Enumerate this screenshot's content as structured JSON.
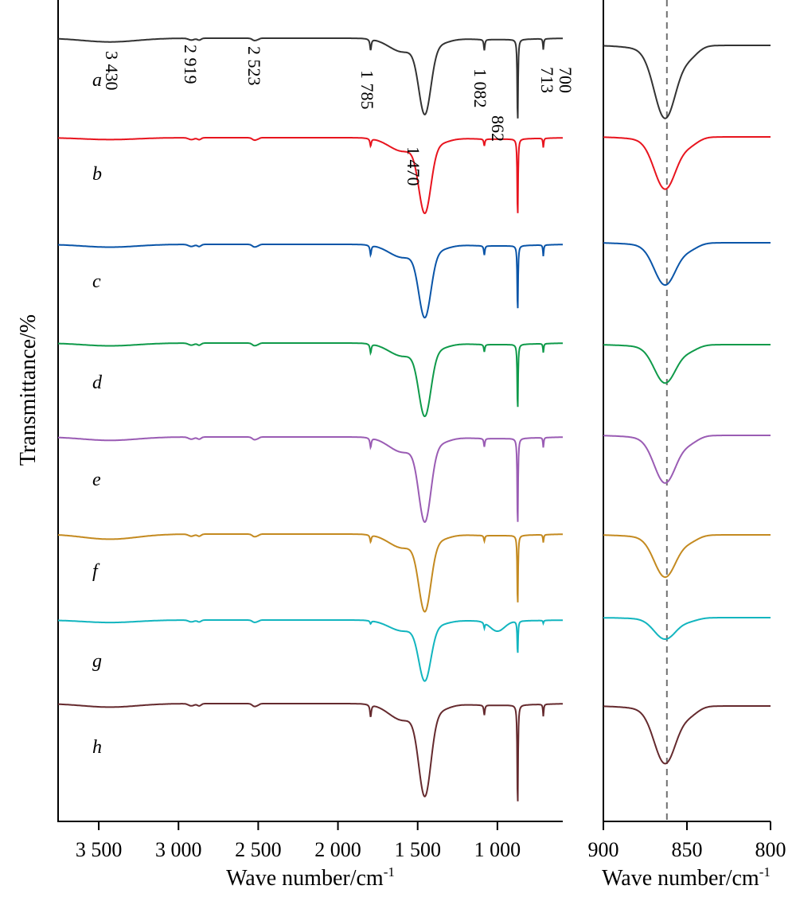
{
  "chart_data": [
    {
      "type": "line",
      "panel": "full-spectrum",
      "title": "",
      "xlabel": "Wave number/cm",
      "xlabel_superscript": "-1",
      "ylabel": "Transmittance/%",
      "xlim": [
        3755,
        590
      ],
      "x_reversed": true,
      "xticks": [
        3500,
        3000,
        2500,
        2000,
        1500,
        1000
      ],
      "xtick_labels": [
        "3 500",
        "3 000",
        "2 500",
        "2 000",
        "1 500",
        "1 000"
      ],
      "y_ticks_shown": false,
      "grid": false,
      "stacked_offset": true,
      "annotations": [
        {
          "text": "3 430",
          "x": 3430,
          "series": "a"
        },
        {
          "text": "2 919",
          "x": 2919,
          "series": "a"
        },
        {
          "text": "2 523",
          "x": 2523,
          "series": "a"
        },
        {
          "text": "1 785",
          "x": 1785,
          "series": "a"
        },
        {
          "text": "1 470",
          "x": 1470,
          "series": "a"
        },
        {
          "text": "1 082",
          "x": 1082,
          "series": "a"
        },
        {
          "text": "862",
          "x": 862,
          "series": "a"
        },
        {
          "text": "713",
          "x": 713,
          "series": "a"
        },
        {
          "text": "700",
          "x": 700,
          "series": "a"
        }
      ]
    },
    {
      "type": "line",
      "panel": "zoom-862",
      "title": "",
      "xlabel": "Wave number/cm",
      "xlabel_superscript": "-1",
      "ylabel": "",
      "xlim": [
        900,
        800
      ],
      "x_reversed": true,
      "xticks": [
        900,
        850,
        800
      ],
      "xtick_labels": [
        "900",
        "850",
        "800"
      ],
      "reference_line": {
        "x": 862,
        "style": "dashed",
        "color": "#707070"
      },
      "grid": false
    }
  ],
  "series": [
    {
      "name": "a",
      "color": "#333333",
      "broad_3430": 0.45,
      "peak_1470": 1.0,
      "peak_862": 1.0,
      "peak_1082": 0.2,
      "peak_713": 0.22,
      "peak_1785": 0.22,
      "extra_1000": 0.0,
      "zoom_depth": 1.0
    },
    {
      "name": "b",
      "color": "#e8141e",
      "broad_3430": 0.22,
      "peak_1470": 0.95,
      "peak_862": 0.9,
      "peak_1082": 0.12,
      "peak_713": 0.18,
      "peak_1785": 0.14,
      "extra_1000": 0.0,
      "zoom_depth": 0.85
    },
    {
      "name": "c",
      "color": "#0a55a8",
      "broad_3430": 0.3,
      "peak_1470": 0.85,
      "peak_862": 0.7,
      "peak_1082": 0.15,
      "peak_713": 0.2,
      "peak_1785": 0.17,
      "extra_1000": 0.0,
      "zoom_depth": 0.75
    },
    {
      "name": "d",
      "color": "#0f9a4a",
      "broad_3430": 0.3,
      "peak_1470": 0.85,
      "peak_862": 0.7,
      "peak_1082": 0.12,
      "peak_713": 0.16,
      "peak_1785": 0.16,
      "extra_1000": 0.0,
      "zoom_depth": 0.75
    },
    {
      "name": "e",
      "color": "#9a5cb4",
      "broad_3430": 0.35,
      "peak_1470": 0.95,
      "peak_862": 0.9,
      "peak_1082": 0.13,
      "peak_713": 0.17,
      "peak_1785": 0.16,
      "extra_1000": 0.0,
      "zoom_depth": 0.95
    },
    {
      "name": "f",
      "color": "#c48a20",
      "broad_3430": 0.55,
      "peak_1470": 0.9,
      "peak_862": 0.75,
      "peak_1082": 0.09,
      "peak_713": 0.14,
      "peak_1785": 0.12,
      "extra_1000": 0.0,
      "zoom_depth": 0.8
    },
    {
      "name": "g",
      "color": "#12b5bf",
      "broad_3430": 0.3,
      "peak_1470": 0.8,
      "peak_862": 0.4,
      "peak_1082": 0.1,
      "peak_713": 0.06,
      "peak_1785": 0.06,
      "extra_1000": 0.22,
      "zoom_depth": 0.4
    },
    {
      "name": "h",
      "color": "#652a2e",
      "broad_3430": 0.35,
      "peak_1470": 1.0,
      "peak_862": 1.0,
      "peak_1082": 0.15,
      "peak_713": 0.2,
      "peak_1785": 0.2,
      "extra_1000": 0.0,
      "zoom_depth": 1.0
    }
  ],
  "labels": {
    "ylabel": "Transmittance/%",
    "xlabel_left": "Wave number/cm",
    "xlabel_right": "Wave number/cm",
    "superscript": "-1"
  }
}
